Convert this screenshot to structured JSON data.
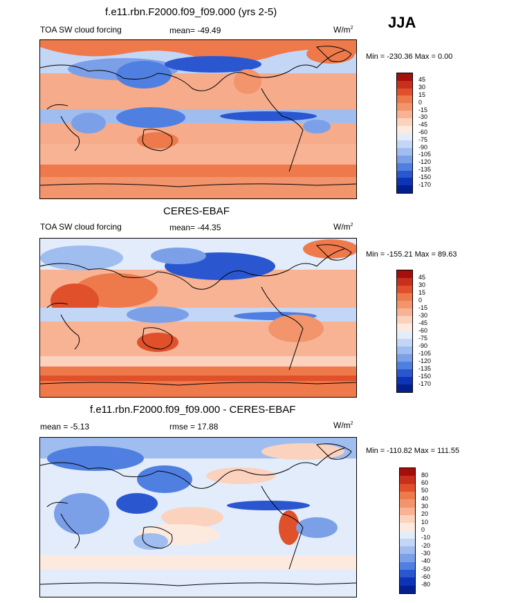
{
  "season": "JJA",
  "panels": [
    {
      "title": "f.e11.rbn.F2000.f09_f09.000 (yrs 2-5)",
      "left_label": "TOA SW cloud forcing",
      "mid_label": "mean= -49.49",
      "unit_base": "W/m",
      "unit_sup": "2",
      "minmax": "Min = -230.36 Max =   0.00",
      "levels": [
        "45",
        "30",
        "15",
        "0",
        "-15",
        "-30",
        "-45",
        "-60",
        "-75",
        "-90",
        "-105",
        "-120",
        "-135",
        "-150",
        "-170"
      ],
      "colors": [
        "#a50f0b",
        "#c8301c",
        "#e0502b",
        "#ee7a4c",
        "#f2946c",
        "#f7b393",
        "#fbd2bd",
        "#fdeadf",
        "#e3ecfb",
        "#c4d6f6",
        "#a0bdf0",
        "#7ba0e8",
        "#4f7fe0",
        "#2a57d0",
        "#0d34b6",
        "#03208e"
      ]
    },
    {
      "title": "CERES-EBAF",
      "left_label": "TOA SW cloud forcing",
      "mid_label": "mean= -44.35",
      "unit_base": "W/m",
      "unit_sup": "2",
      "minmax": "Min = -155.21 Max =  89.63",
      "levels": [
        "45",
        "30",
        "15",
        "0",
        "-15",
        "-30",
        "-45",
        "-60",
        "-75",
        "-90",
        "-105",
        "-120",
        "-135",
        "-150",
        "-170"
      ],
      "colors": [
        "#a50f0b",
        "#c8301c",
        "#e0502b",
        "#ee7a4c",
        "#f2946c",
        "#f7b393",
        "#fbd2bd",
        "#fdeadf",
        "#e3ecfb",
        "#c4d6f6",
        "#a0bdf0",
        "#7ba0e8",
        "#4f7fe0",
        "#2a57d0",
        "#0d34b6",
        "#03208e"
      ]
    },
    {
      "title": "f.e11.rbn.F2000.f09_f09.000 - CERES-EBAF",
      "left_label": "mean =  -5.13",
      "mid_label": "rmse =  17.88",
      "unit_base": "W/m",
      "unit_sup": "2",
      "minmax": "Min = -110.82 Max = 111.55",
      "levels": [
        "80",
        "60",
        "50",
        "40",
        "30",
        "20",
        "10",
        "0",
        "-10",
        "-20",
        "-30",
        "-40",
        "-50",
        "-60",
        "-80"
      ],
      "colors": [
        "#a50f0b",
        "#c8301c",
        "#e0502b",
        "#ee7a4c",
        "#f2946c",
        "#f7b393",
        "#fbd2bd",
        "#fdeadf",
        "#e3ecfb",
        "#c4d6f6",
        "#a0bdf0",
        "#7ba0e8",
        "#4f7fe0",
        "#2a57d0",
        "#0d34b6",
        "#03208e"
      ]
    }
  ]
}
